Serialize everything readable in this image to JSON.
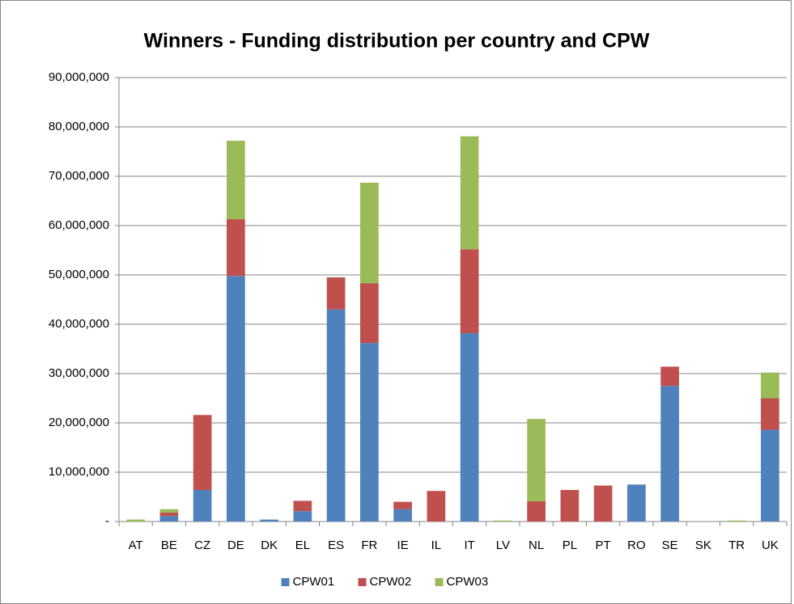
{
  "chart_data": {
    "type": "stacked_bar",
    "title": "Winners - Funding distribution per country and CPW",
    "categories": [
      "AT",
      "BE",
      "CZ",
      "DE",
      "DK",
      "EL",
      "ES",
      "FR",
      "IE",
      "IL",
      "IT",
      "LV",
      "NL",
      "PL",
      "PT",
      "RO",
      "SE",
      "SK",
      "TR",
      "UK"
    ],
    "series": [
      {
        "name": "CPW01",
        "color": "#4f81bd",
        "values": [
          0,
          1100000,
          6400000,
          49800000,
          400000,
          2100000,
          43000000,
          36200000,
          2500000,
          0,
          38200000,
          0,
          0,
          0,
          0,
          7500000,
          27500000,
          0,
          0,
          18600000
        ]
      },
      {
        "name": "CPW02",
        "color": "#c0504d",
        "values": [
          0,
          700000,
          15200000,
          11500000,
          0,
          2100000,
          6500000,
          12100000,
          1500000,
          6200000,
          17000000,
          0,
          4100000,
          6400000,
          7300000,
          0,
          3900000,
          0,
          0,
          6400000
        ]
      },
      {
        "name": "CPW03",
        "color": "#9bbb59",
        "values": [
          400000,
          700000,
          0,
          15900000,
          0,
          0,
          0,
          20400000,
          0,
          0,
          22900000,
          200000,
          16700000,
          0,
          0,
          0,
          0,
          0,
          200000,
          5200000
        ]
      }
    ],
    "ylim": [
      0,
      90000000
    ],
    "yticks": [
      {
        "value": 0,
        "label": "-"
      },
      {
        "value": 10000000,
        "label": "10,000,000"
      },
      {
        "value": 20000000,
        "label": "20,000,000"
      },
      {
        "value": 30000000,
        "label": "30,000,000"
      },
      {
        "value": 40000000,
        "label": "40,000,000"
      },
      {
        "value": 50000000,
        "label": "50,000,000"
      },
      {
        "value": 60000000,
        "label": "60,000,000"
      },
      {
        "value": 70000000,
        "label": "70,000,000"
      },
      {
        "value": 80000000,
        "label": "80,000,000"
      },
      {
        "value": 90000000,
        "label": "90,000,000"
      }
    ],
    "grid": true,
    "legend": "bottom"
  }
}
